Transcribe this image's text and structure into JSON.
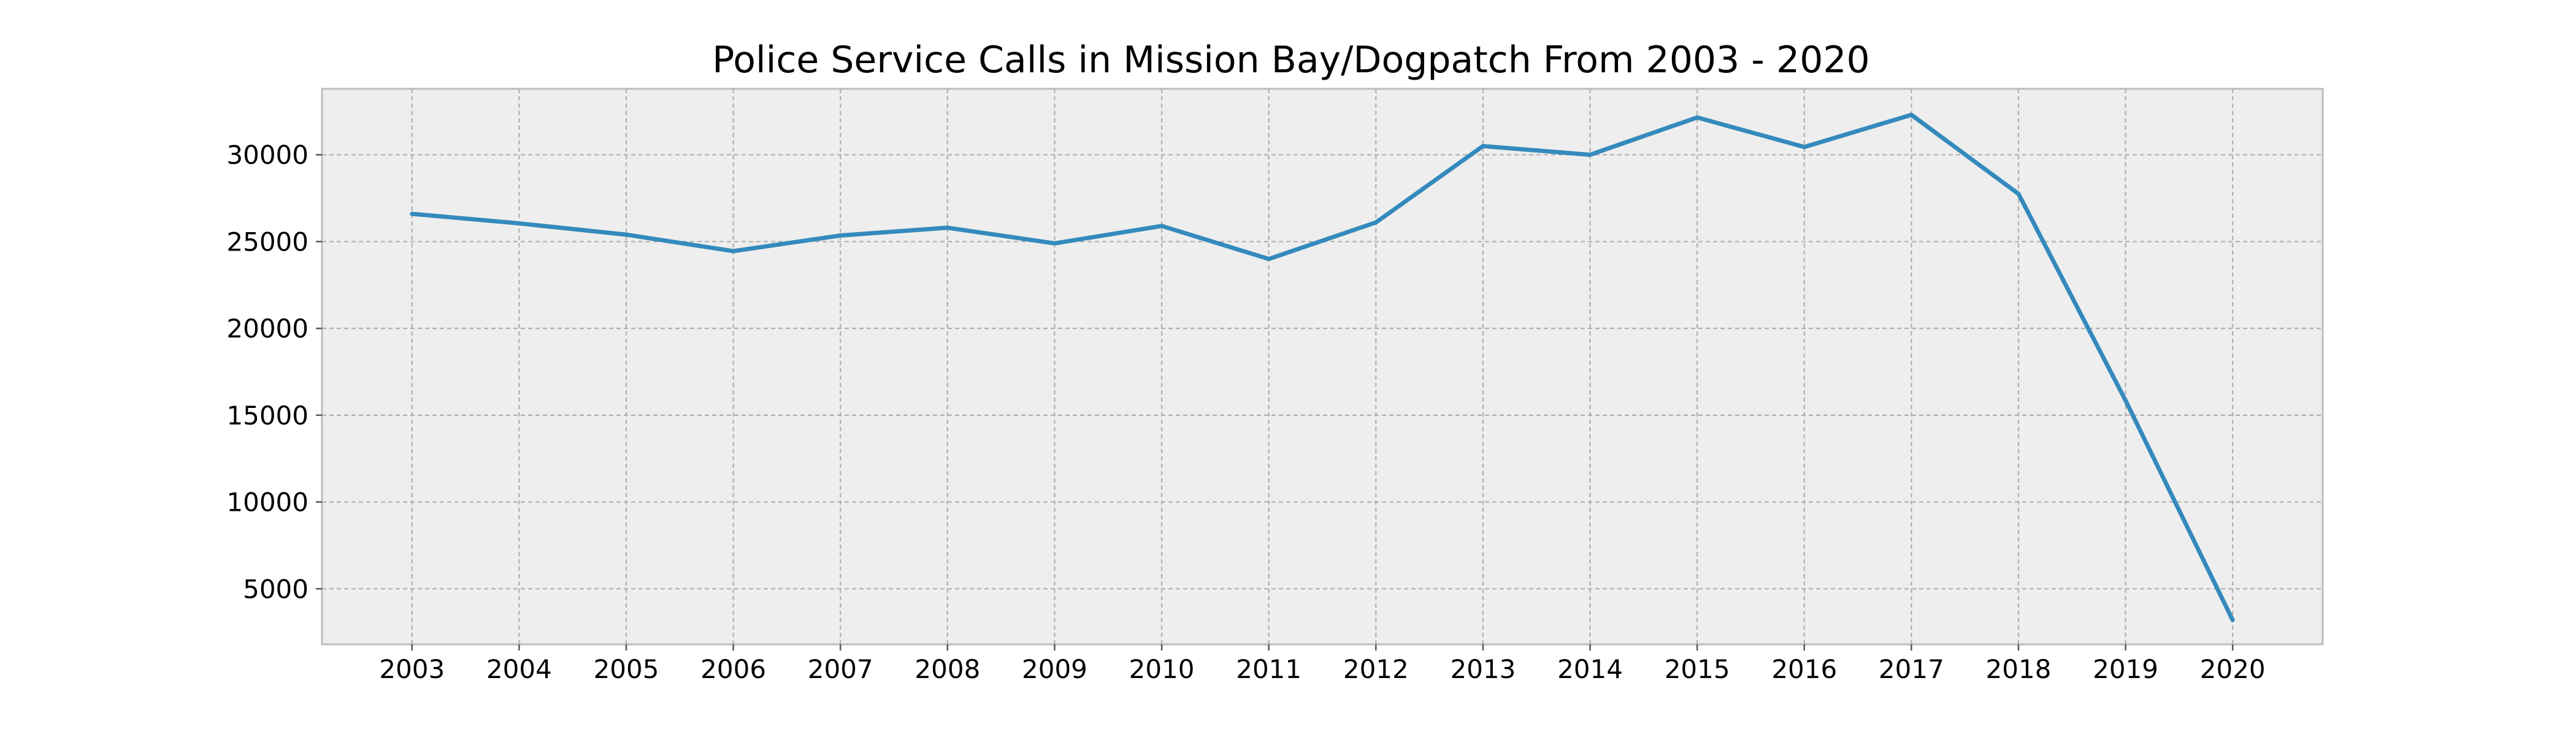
{
  "chart_data": {
    "type": "line",
    "title": "Police Service Calls in Mission Bay/Dogpatch From 2003 - 2020",
    "xlabel": "",
    "ylabel": "",
    "x": [
      "2003",
      "2004",
      "2005",
      "2006",
      "2007",
      "2008",
      "2009",
      "2010",
      "2011",
      "2012",
      "2013",
      "2014",
      "2015",
      "2016",
      "2017",
      "2018",
      "2019",
      "2020"
    ],
    "series": [
      {
        "values": [
          26600,
          26050,
          25400,
          24450,
          25350,
          25800,
          24900,
          25900,
          24000,
          26100,
          30500,
          30000,
          32150,
          30450,
          32300,
          27750,
          15850,
          3200
        ],
        "color": "#348abd"
      }
    ],
    "ylim": [
      1800,
      33800
    ],
    "yticks": [
      5000,
      10000,
      15000,
      20000,
      25000,
      30000
    ],
    "ytick_labels": [
      "5000",
      "10000",
      "15000",
      "20000",
      "25000",
      "30000"
    ],
    "grid": true,
    "legend": "none",
    "background_color": "#eeeeee"
  }
}
